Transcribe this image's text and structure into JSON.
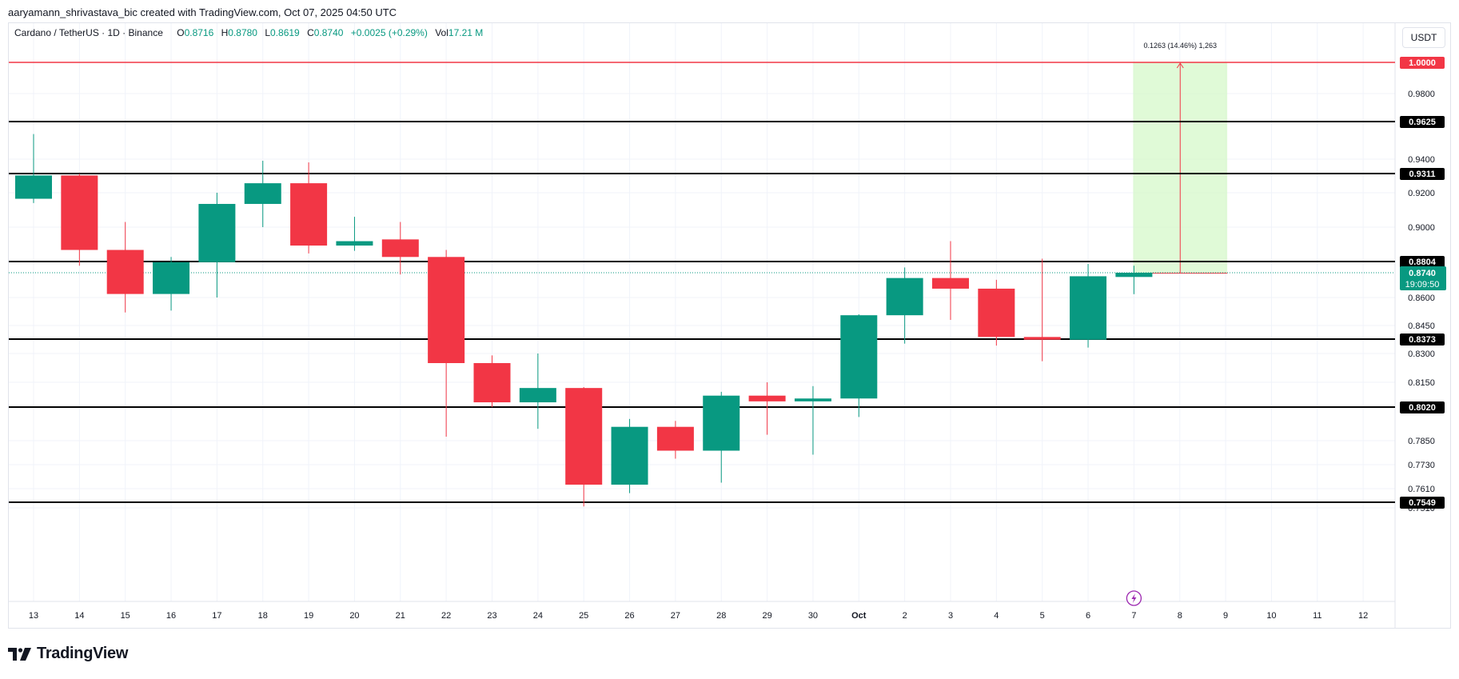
{
  "author_line": "aaryamann_shrivastava_bic created with TradingView.com, Oct 07, 2025 04:50 UTC",
  "legend": {
    "symbol": "Cardano / TetherUS · 1D · Binance",
    "open_label": "O",
    "open": "0.8716",
    "high_label": "H",
    "high": "0.8780",
    "low_label": "L",
    "low": "0.8619",
    "close_label": "C",
    "close": "0.8740",
    "change": "+0.0025 (+0.29%)",
    "vol_label": "Vol",
    "vol": "17.21 M"
  },
  "currency_button": "USDT",
  "brand": "TradingView",
  "colors": {
    "up": "#089981",
    "down": "#f23645",
    "level_line": "#000000",
    "resistance_line": "#f23645",
    "measure_fill": "#d6f8c9",
    "price_tag": "#089981"
  },
  "chart_data": {
    "type": "candlestick",
    "x_ticks": [
      "13",
      "14",
      "15",
      "16",
      "17",
      "18",
      "19",
      "20",
      "21",
      "22",
      "23",
      "24",
      "25",
      "26",
      "27",
      "28",
      "29",
      "30",
      "Oct",
      "2",
      "3",
      "4",
      "5",
      "6",
      "7",
      "8",
      "9",
      "10",
      "11",
      "12"
    ],
    "candles": [
      {
        "x": "13",
        "open": 0.9165,
        "high": 0.955,
        "low": 0.914,
        "close": 0.93
      },
      {
        "x": "14",
        "open": 0.93,
        "high": 0.931,
        "low": 0.878,
        "close": 0.887
      },
      {
        "x": "15",
        "open": 0.887,
        "high": 0.903,
        "low": 0.852,
        "close": 0.862
      },
      {
        "x": "16",
        "open": 0.862,
        "high": 0.883,
        "low": 0.853,
        "close": 0.88
      },
      {
        "x": "17",
        "open": 0.88,
        "high": 0.92,
        "low": 0.86,
        "close": 0.9135
      },
      {
        "x": "18",
        "open": 0.9135,
        "high": 0.939,
        "low": 0.9,
        "close": 0.9255
      },
      {
        "x": "19",
        "open": 0.9255,
        "high": 0.938,
        "low": 0.885,
        "close": 0.8895
      },
      {
        "x": "20",
        "open": 0.8895,
        "high": 0.906,
        "low": 0.8865,
        "close": 0.892
      },
      {
        "x": "21",
        "open": 0.893,
        "high": 0.903,
        "low": 0.873,
        "close": 0.883
      },
      {
        "x": "22",
        "open": 0.883,
        "high": 0.887,
        "low": 0.787,
        "close": 0.825
      },
      {
        "x": "23",
        "open": 0.825,
        "high": 0.829,
        "low": 0.802,
        "close": 0.8045
      },
      {
        "x": "24",
        "open": 0.8045,
        "high": 0.83,
        "low": 0.791,
        "close": 0.812
      },
      {
        "x": "25",
        "open": 0.812,
        "high": 0.8125,
        "low": 0.752,
        "close": 0.763
      },
      {
        "x": "26",
        "open": 0.763,
        "high": 0.796,
        "low": 0.759,
        "close": 0.792
      },
      {
        "x": "27",
        "open": 0.792,
        "high": 0.795,
        "low": 0.776,
        "close": 0.78
      },
      {
        "x": "28",
        "open": 0.78,
        "high": 0.81,
        "low": 0.764,
        "close": 0.808
      },
      {
        "x": "29",
        "open": 0.808,
        "high": 0.815,
        "low": 0.788,
        "close": 0.805
      },
      {
        "x": "30",
        "open": 0.805,
        "high": 0.813,
        "low": 0.778,
        "close": 0.8065
      },
      {
        "x": "Oct",
        "open": 0.8065,
        "high": 0.851,
        "low": 0.797,
        "close": 0.8505
      },
      {
        "x": "2",
        "open": 0.8505,
        "high": 0.877,
        "low": 0.835,
        "close": 0.871
      },
      {
        "x": "3",
        "open": 0.871,
        "high": 0.892,
        "low": 0.848,
        "close": 0.865
      },
      {
        "x": "4",
        "open": 0.865,
        "high": 0.87,
        "low": 0.834,
        "close": 0.8385
      },
      {
        "x": "5",
        "open": 0.8385,
        "high": 0.882,
        "low": 0.826,
        "close": 0.837
      },
      {
        "x": "6",
        "open": 0.837,
        "high": 0.879,
        "low": 0.833,
        "close": 0.872
      },
      {
        "x": "7",
        "open": 0.8716,
        "high": 0.878,
        "low": 0.8619,
        "close": 0.874
      }
    ],
    "y_ticks": [
      "0.9800",
      "0.9400",
      "0.9200",
      "0.9000",
      "0.8600",
      "0.8450",
      "0.8300",
      "0.8150",
      "0.7850",
      "0.7730",
      "0.7610",
      "0.7510"
    ],
    "levels": [
      {
        "value": 1.0,
        "label": "1.0000",
        "kind": "resistance"
      },
      {
        "value": 0.9625,
        "label": "0.9625",
        "kind": "level"
      },
      {
        "value": 0.9311,
        "label": "0.9311",
        "kind": "level"
      },
      {
        "value": 0.8804,
        "label": "0.8804",
        "kind": "level"
      },
      {
        "value": 0.8373,
        "label": "0.8373",
        "kind": "level"
      },
      {
        "value": 0.802,
        "label": "0.8020",
        "kind": "level"
      },
      {
        "value": 0.7549,
        "label": "0.7549",
        "kind": "level"
      }
    ],
    "last_price": {
      "value": 0.874,
      "label": "0.8740",
      "countdown": "19:09:50"
    },
    "measure": {
      "from_x": "7",
      "to_x": "9",
      "from_price": 0.8737,
      "to_price": 1.0,
      "label": "0.1263 (14.46%) 1,263"
    },
    "grid": true
  }
}
